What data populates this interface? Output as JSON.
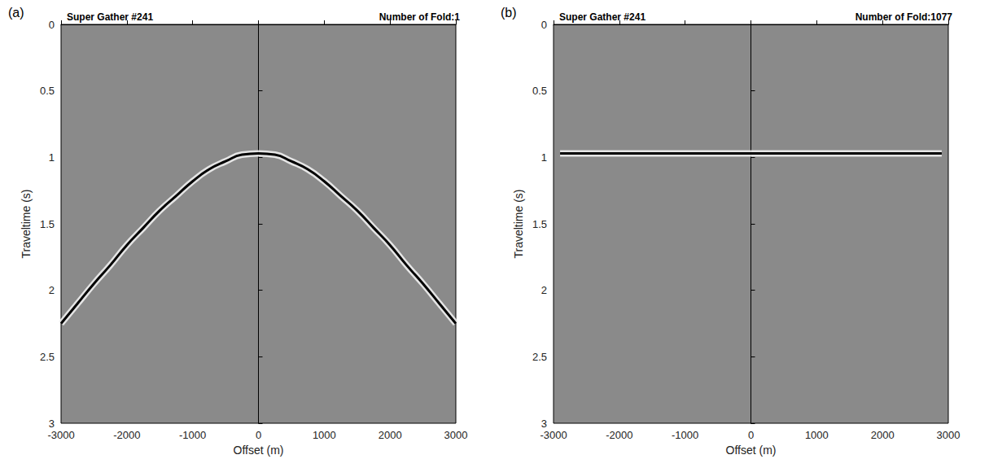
{
  "chart_data": [
    {
      "type": "line",
      "panel_label": "(a)",
      "title": "Super Gather #241",
      "subtitle": "Number of Fold:1",
      "xlabel": "Offset (m)",
      "ylabel": "Traveltime (s)",
      "xlim": [
        -3000,
        3000
      ],
      "xticks": [
        -3000,
        -2000,
        -1000,
        0,
        1000,
        2000,
        3000
      ],
      "ylim": [
        0,
        3
      ],
      "yticks": [
        0,
        0.5,
        1,
        1.5,
        2,
        2.5,
        3
      ],
      "grid": false,
      "series": [
        {
          "color": "#000000",
          "x": [
            -3000,
            -2750,
            -2500,
            -2250,
            -2000,
            -1750,
            -1500,
            -1250,
            -1000,
            -750,
            -500,
            -250,
            0,
            250,
            500,
            750,
            1000,
            1250,
            1500,
            1750,
            2000,
            2250,
            2500,
            2750,
            3000
          ],
          "values": [
            2.25,
            2.1,
            1.95,
            1.81,
            1.66,
            1.53,
            1.4,
            1.29,
            1.18,
            1.09,
            1.03,
            0.98,
            0.97,
            0.98,
            1.03,
            1.09,
            1.18,
            1.29,
            1.4,
            1.53,
            1.66,
            1.81,
            1.95,
            2.1,
            2.25
          ]
        }
      ]
    },
    {
      "type": "line",
      "panel_label": "(b)",
      "title": "Super Gather #241",
      "subtitle": "Number of Fold:1077",
      "xlabel": "Offset (m)",
      "ylabel": "Traveltime (s)",
      "xlim": [
        -3000,
        3000
      ],
      "xticks": [
        -3000,
        -2000,
        -1000,
        0,
        1000,
        2000,
        3000
      ],
      "ylim": [
        0,
        3
      ],
      "yticks": [
        0,
        0.5,
        1,
        1.5,
        2,
        2.5,
        3
      ],
      "grid": false,
      "series": [
        {
          "color": "#000000",
          "x": [
            -2900,
            -2000,
            -1000,
            0,
            1000,
            2000,
            2900
          ],
          "values": [
            0.97,
            0.97,
            0.97,
            0.97,
            0.97,
            0.97,
            0.97
          ]
        }
      ]
    }
  ]
}
